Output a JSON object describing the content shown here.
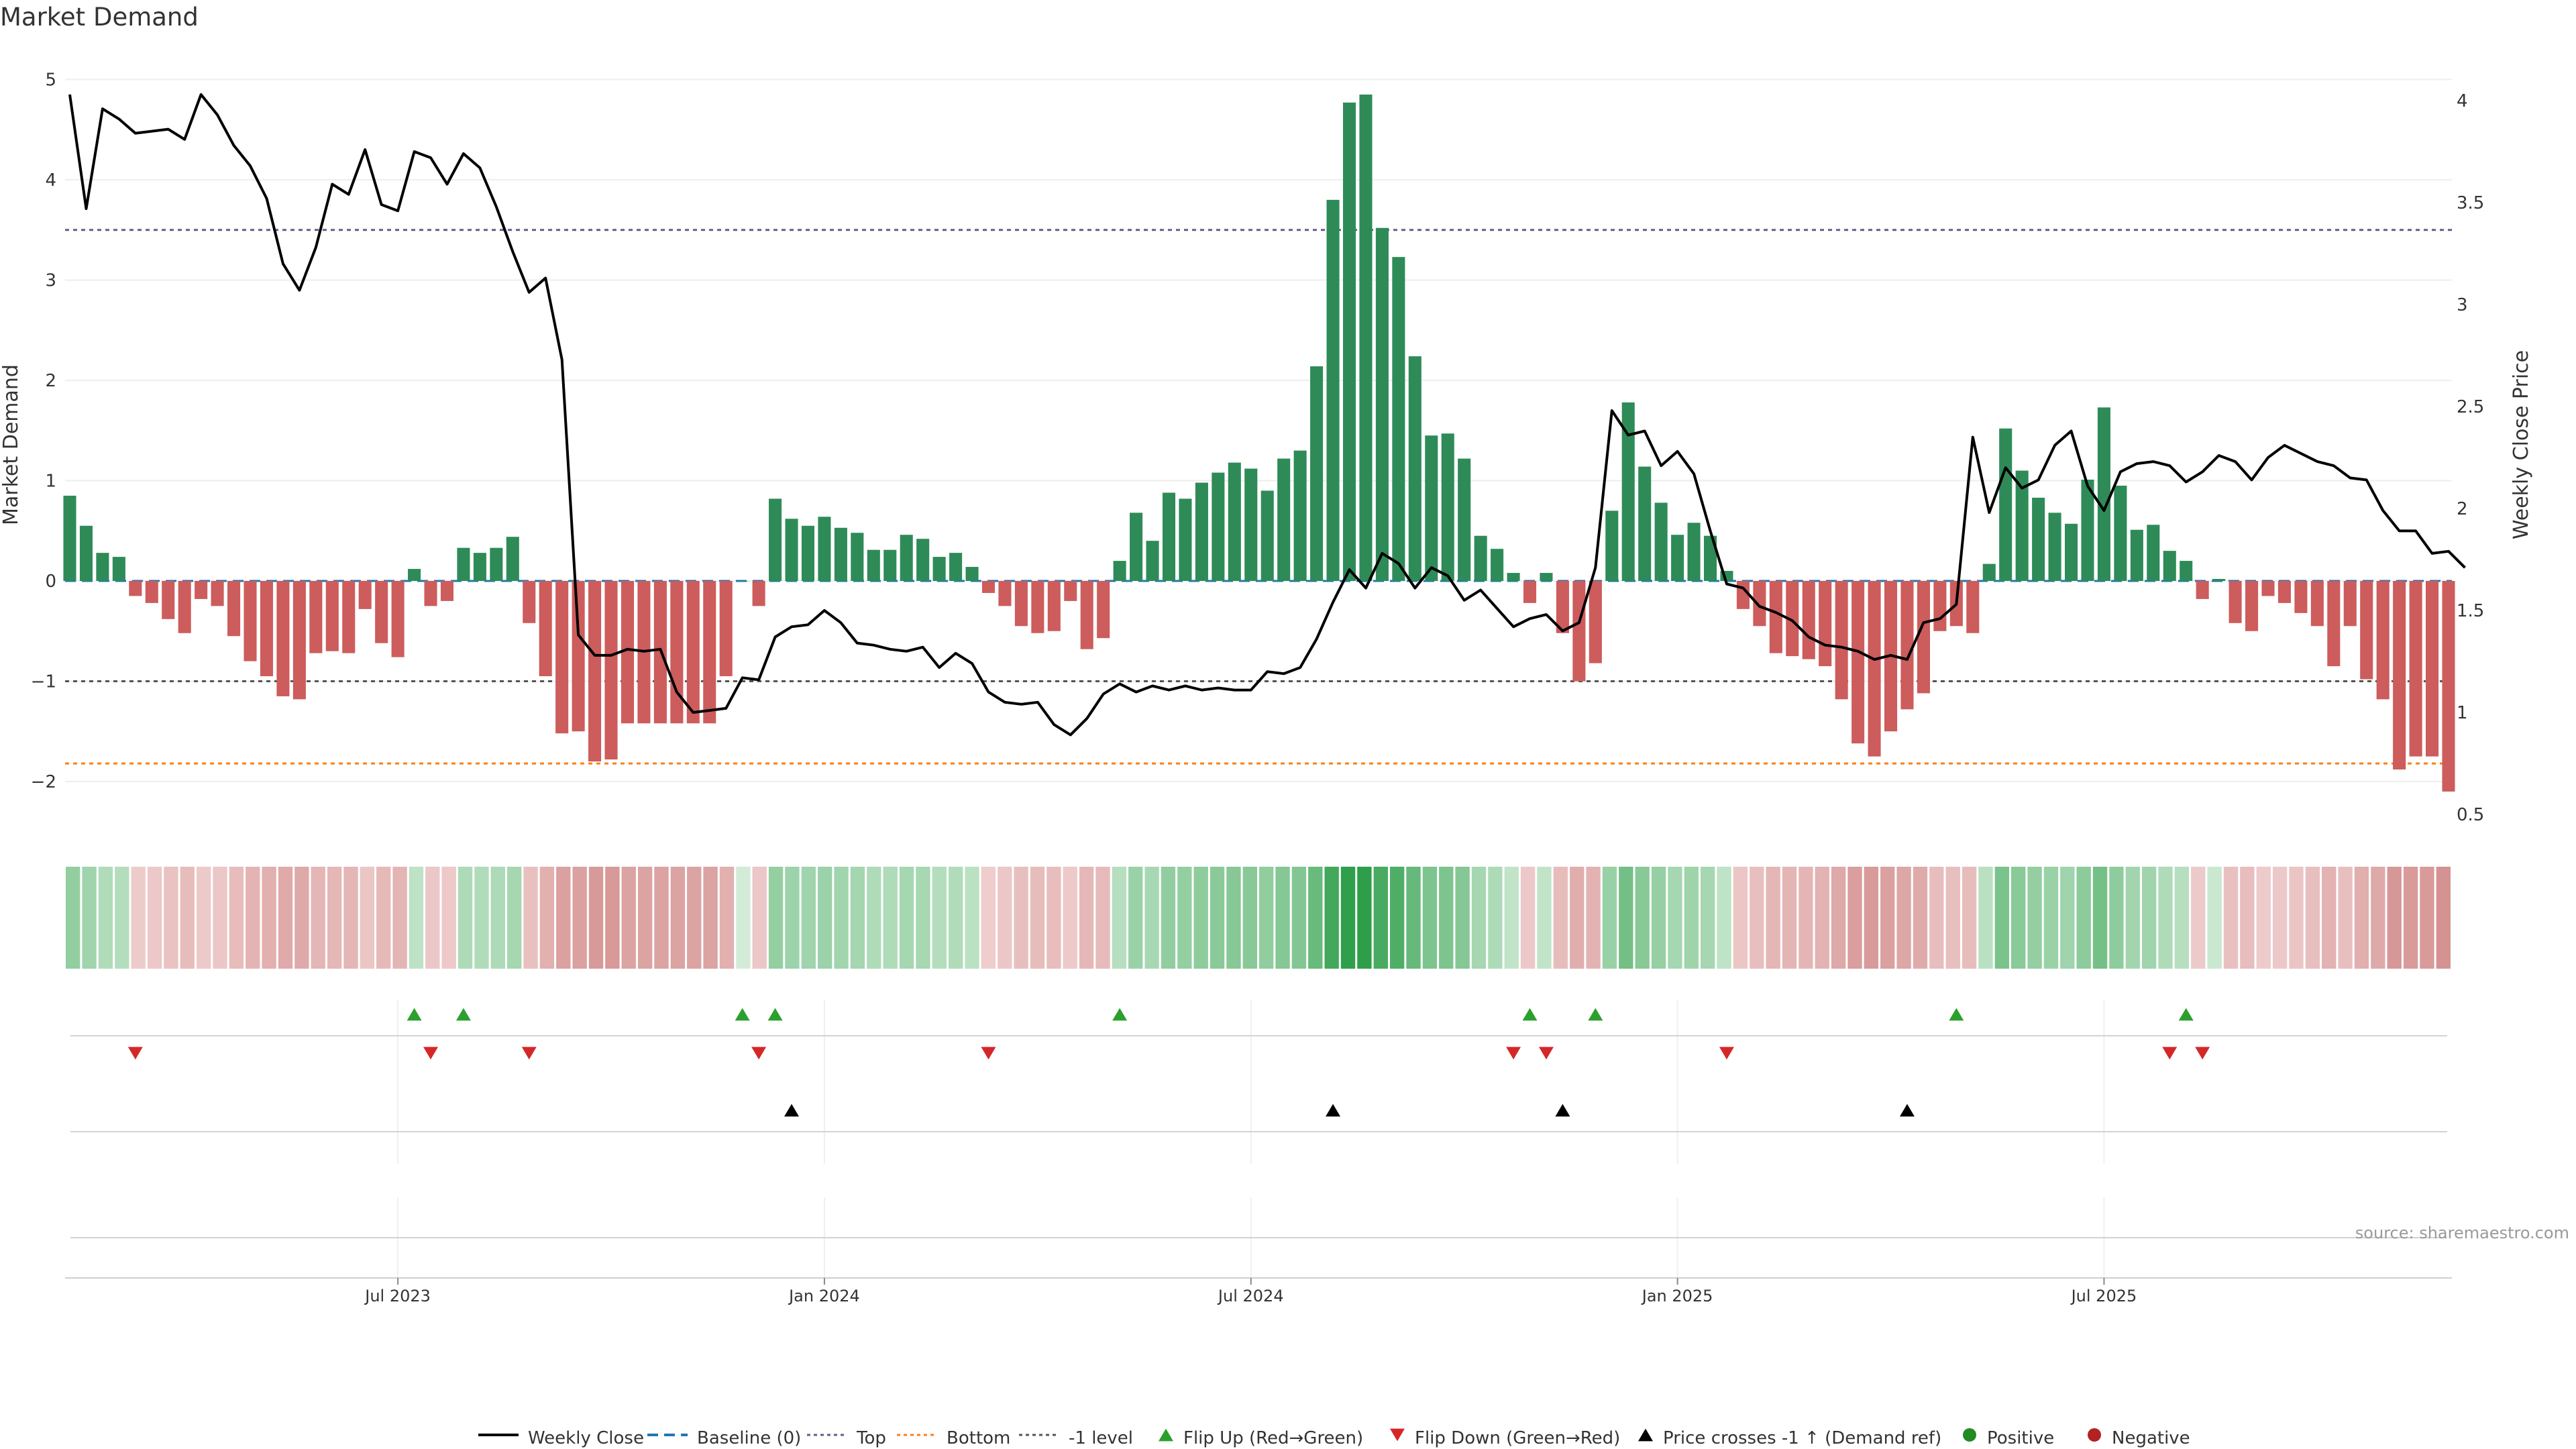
{
  "title": "Market Demand",
  "source": "source: sharemaestro.com",
  "chart_data": {
    "type": "bar+line",
    "title": "Market Demand",
    "ylabel_left": "Market Demand",
    "ylabel_right": "Weekly Close Price",
    "ylim_left": [
      -2.5,
      5.2
    ],
    "ylim_right": [
      0.45,
      4.15
    ],
    "yticks_left": [
      5,
      4,
      3,
      2,
      1,
      0,
      -1,
      -2
    ],
    "ytick_labels_left": [
      "5",
      "4",
      "3",
      "2",
      "1",
      "0",
      "−1",
      "−2"
    ],
    "yticks_right": [
      4,
      3.5,
      3,
      2.5,
      2,
      1.5,
      1,
      0.5
    ],
    "ytick_labels_right": [
      "4",
      "3.5",
      "3",
      "2.5",
      "2",
      "1.5",
      "1",
      "0.5"
    ],
    "x_ticks": [
      {
        "label": "Jul 2023",
        "week": 20
      },
      {
        "label": "Jan 2024",
        "week": 46
      },
      {
        "label": "Jul 2024",
        "week": 72
      },
      {
        "label": "Jan 2025",
        "week": 98
      },
      {
        "label": "Jul 2025",
        "week": 124
      }
    ],
    "reference_lines": {
      "top": 3.5,
      "bottom": -1.82,
      "minus_one": -1,
      "baseline": 0
    },
    "demand": [
      0.85,
      0.55,
      0.28,
      0.24,
      -0.15,
      -0.22,
      -0.38,
      -0.52,
      -0.18,
      -0.25,
      -0.55,
      -0.8,
      -0.95,
      -1.15,
      -1.18,
      -0.72,
      -0.7,
      -0.72,
      -0.28,
      -0.62,
      -0.76,
      0.12,
      -0.25,
      -0.2,
      0.33,
      0.28,
      0.33,
      0.44,
      -0.42,
      -0.95,
      -1.52,
      -1.5,
      -1.8,
      -1.78,
      -1.42,
      -1.42,
      -1.42,
      -1.42,
      -1.42,
      -1.42,
      -0.95,
      0,
      -0.25,
      0.82,
      0.62,
      0.55,
      0.64,
      0.53,
      0.48,
      0.31,
      0.31,
      0.46,
      0.42,
      0.24,
      0.28,
      0.14,
      -0.12,
      -0.25,
      -0.45,
      -0.52,
      -0.5,
      -0.2,
      -0.68,
      -0.57,
      0.2,
      0.68,
      0.4,
      0.88,
      0.82,
      0.98,
      1.08,
      1.18,
      1.12,
      0.9,
      1.22,
      1.3,
      2.14,
      3.8,
      4.77,
      4.85,
      3.52,
      3.23,
      2.24,
      1.45,
      1.47,
      1.22,
      0.45,
      0.32,
      0.08,
      -0.22,
      0.08,
      -0.52,
      -1.0,
      -0.82,
      0.7,
      1.78,
      1.14,
      0.78,
      0.46,
      0.58,
      0.45,
      0.1,
      -0.28,
      -0.45,
      -0.72,
      -0.75,
      -0.78,
      -0.85,
      -1.18,
      -1.62,
      -1.75,
      -1.5,
      -1.28,
      -1.12,
      -0.5,
      -0.45,
      -0.52,
      0.17,
      1.52,
      1.1,
      0.83,
      0.68,
      0.57,
      1.01,
      1.73,
      0.95,
      0.51,
      0.56,
      0.3,
      0.2,
      -0.18,
      0.02,
      -0.42,
      -0.5,
      -0.15,
      -0.22,
      -0.32,
      -0.45,
      -0.85,
      -0.45,
      -0.98,
      -1.18,
      -1.88,
      -1.75,
      -1.75,
      -2.1
    ],
    "price": [
      4.03,
      3.47,
      3.96,
      3.91,
      3.84,
      3.85,
      3.86,
      3.81,
      4.03,
      3.93,
      3.78,
      3.68,
      3.52,
      3.2,
      3.07,
      3.28,
      3.59,
      3.54,
      3.76,
      3.49,
      3.46,
      3.75,
      3.72,
      3.59,
      3.74,
      3.67,
      3.48,
      3.26,
      3.06,
      3.13,
      2.73,
      1.38,
      1.28,
      1.28,
      1.31,
      1.3,
      1.31,
      1.1,
      1.0,
      1.01,
      1.02,
      1.17,
      1.16,
      1.37,
      1.42,
      1.43,
      1.5,
      1.44,
      1.34,
      1.33,
      1.31,
      1.3,
      1.32,
      1.22,
      1.29,
      1.24,
      1.1,
      1.05,
      1.04,
      1.05,
      0.94,
      0.89,
      0.97,
      1.09,
      1.14,
      1.1,
      1.13,
      1.11,
      1.13,
      1.11,
      1.12,
      1.11,
      1.11,
      1.2,
      1.19,
      1.22,
      1.36,
      1.54,
      1.7,
      1.61,
      1.78,
      1.73,
      1.61,
      1.71,
      1.67,
      1.55,
      1.6,
      1.51,
      1.42,
      1.46,
      1.48,
      1.4,
      1.44,
      1.71,
      2.48,
      2.36,
      2.38,
      2.21,
      2.28,
      2.17,
      1.89,
      1.63,
      1.61,
      1.52,
      1.49,
      1.45,
      1.37,
      1.33,
      1.32,
      1.3,
      1.26,
      1.28,
      1.26,
      1.44,
      1.46,
      1.53,
      2.35,
      1.98,
      2.2,
      2.1,
      2.14,
      2.31,
      2.38,
      2.11,
      1.99,
      2.18,
      2.22,
      2.23,
      2.21,
      2.13,
      2.18,
      2.26,
      2.23,
      2.14,
      2.25,
      2.31,
      2.27,
      2.23,
      2.21,
      2.15,
      2.14,
      1.99,
      1.89,
      1.89,
      1.78,
      1.79,
      1.71
    ],
    "flip_up_weeks": [
      21,
      24,
      41,
      43,
      64,
      89,
      93,
      115,
      129
    ],
    "flip_down_weeks": [
      4,
      22,
      28,
      42,
      56,
      88,
      90,
      101,
      128,
      130
    ],
    "price_cross_weeks": [
      44,
      77,
      91,
      112
    ],
    "legend": [
      "Weekly Close",
      "Baseline (0)",
      "Top",
      "Bottom",
      "-1 level",
      "Flip Up (Red→Green)",
      "Flip Down (Green→Red)",
      "Price crosses -1 ↑ (Demand ref)",
      "Positive",
      "Negative"
    ]
  },
  "colors": {
    "positive": "#2e8b57",
    "negative": "#cd5c5c",
    "price_line": "#000000",
    "baseline": "#1f77b4",
    "top": "#6a5a8a",
    "bottom": "#ff7f0e",
    "minus_one": "#555555",
    "flip_up": "#2ca02c",
    "flip_down": "#d62728",
    "legend_positive": "#228b22",
    "legend_negative": "#b22222"
  }
}
